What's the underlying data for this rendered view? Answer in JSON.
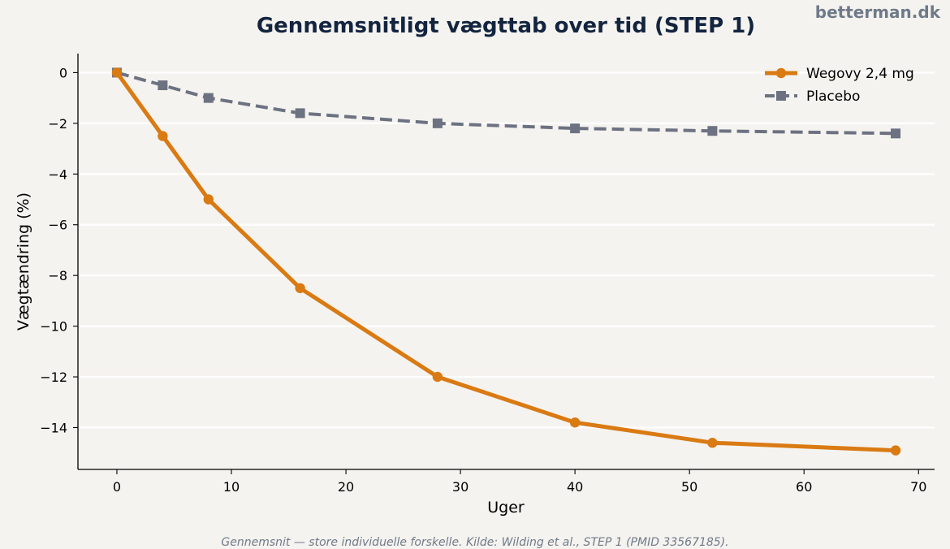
{
  "brand": "betterman.dk",
  "footnote": "Gennemsnit — store individuelle forskelle. Kilde: Wilding et al., STEP 1 (PMID 33567185).",
  "chart_data": {
    "type": "line",
    "title": "Gennemsnitligt vægttab over tid (STEP 1)",
    "xlabel": "Uger",
    "ylabel": "Vægtændring (%)",
    "xlim": [
      -3.4,
      71.4
    ],
    "ylim": [
      -15.65,
      0.75
    ],
    "xticks": [
      0,
      10,
      20,
      30,
      40,
      50,
      60,
      70
    ],
    "yticks": [
      0,
      -2,
      -4,
      -6,
      -8,
      -10,
      -12,
      -14
    ],
    "ytick_labels": [
      "0",
      "−2",
      "−4",
      "−6",
      "−8",
      "−10",
      "−12",
      "−14"
    ],
    "grid": "horizontal",
    "legend_position": "top-right",
    "series": [
      {
        "name": "Wegovy 2,4 mg",
        "color": "#d97a13",
        "marker": "circle",
        "line_style": "solid",
        "x": [
          0,
          4,
          8,
          16,
          28,
          40,
          52,
          68
        ],
        "y": [
          0,
          -2.5,
          -5.0,
          -8.5,
          -12.0,
          -13.8,
          -14.6,
          -14.9
        ]
      },
      {
        "name": "Placebo",
        "color": "#6c7281",
        "marker": "square",
        "line_style": "dashed",
        "x": [
          0,
          4,
          8,
          16,
          28,
          40,
          52,
          68
        ],
        "y": [
          0,
          -0.5,
          -1.0,
          -1.6,
          -2.0,
          -2.2,
          -2.3,
          -2.4
        ]
      }
    ]
  }
}
